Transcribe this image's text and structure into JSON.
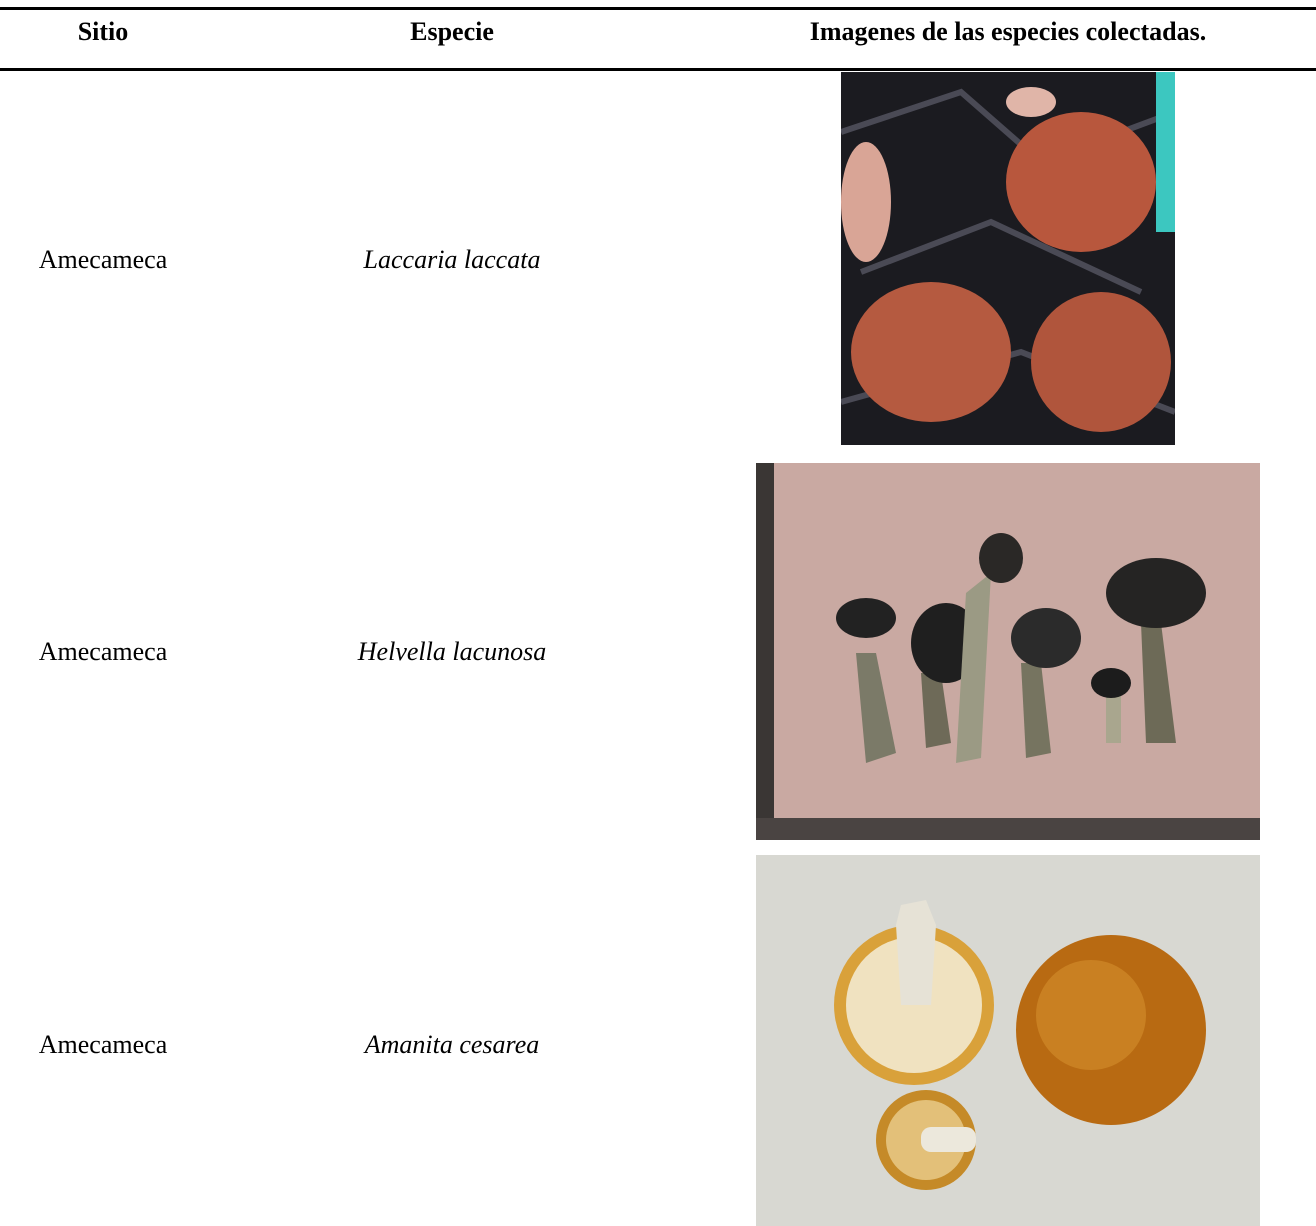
{
  "table": {
    "header": [
      "Sitio",
      "Especie",
      "Imagenes de las especies colectadas."
    ],
    "rows": [
      [
        "Amecameca",
        "Laccaria laccata"
      ],
      [
        "Amecameca",
        "Helvella lacunosa"
      ],
      [
        "Amecameca",
        "Amanita cesarea"
      ]
    ]
  }
}
